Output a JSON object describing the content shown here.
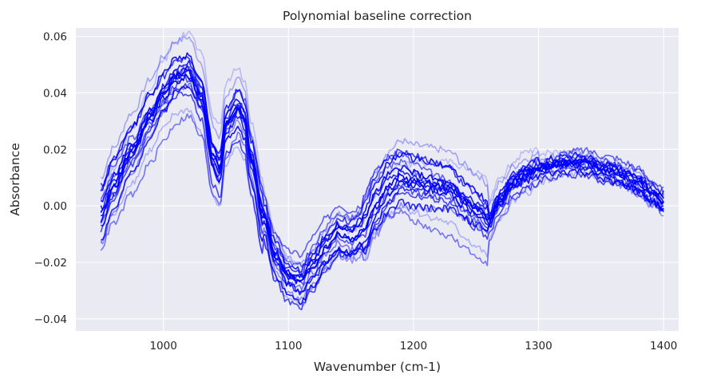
{
  "chart_data": {
    "type": "line",
    "title": "Polynomial baseline correction",
    "xlabel": "Wavenumber (cm-1)",
    "ylabel": "Absorbance",
    "xlim": [
      930,
      1412
    ],
    "ylim": [
      -0.0443,
      0.063
    ],
    "xticks": [
      1000,
      1100,
      1200,
      1300,
      1400
    ],
    "xtick_labels": [
      "1000",
      "1100",
      "1200",
      "1300",
      "1400"
    ],
    "yticks": [
      -0.04,
      -0.02,
      0.0,
      0.02,
      0.04,
      0.06
    ],
    "ytick_labels": [
      "−0.04",
      "−0.02",
      "0.00",
      "0.02",
      "0.04",
      "0.06"
    ],
    "grid": true,
    "line_color": "#0000ff",
    "background_color": "#eaeaf2",
    "grid_color": "#ffffff",
    "series_template": {
      "x": [
        950,
        960,
        975,
        990,
        1000,
        1010,
        1020,
        1030,
        1040,
        1045,
        1050,
        1060,
        1065,
        1070,
        1080,
        1090,
        1100,
        1110,
        1120,
        1130,
        1140,
        1150,
        1160,
        1170,
        1180,
        1190,
        1200,
        1210,
        1220,
        1230,
        1240,
        1250,
        1260,
        1270,
        1280,
        1290,
        1300,
        1310,
        1320,
        1330,
        1340,
        1350,
        1360,
        1370,
        1380,
        1390,
        1400
      ],
      "y": [
        -0.004,
        0.006,
        0.018,
        0.03,
        0.038,
        0.044,
        0.046,
        0.038,
        0.016,
        0.012,
        0.028,
        0.034,
        0.03,
        0.016,
        -0.004,
        -0.018,
        -0.025,
        -0.027,
        -0.021,
        -0.015,
        -0.01,
        -0.012,
        -0.009,
        0.0,
        0.006,
        0.009,
        0.007,
        0.006,
        0.005,
        0.004,
        0.0,
        -0.003,
        -0.006,
        0.002,
        0.008,
        0.011,
        0.013,
        0.014,
        0.015,
        0.0155,
        0.015,
        0.013,
        0.012,
        0.01,
        0.008,
        0.004,
        0.001
      ]
    },
    "series": [
      {
        "shift": 0.0,
        "wave": 0.0,
        "opacity": 0.95
      },
      {
        "shift": 0.006,
        "wave": 0.004,
        "opacity": 0.9
      },
      {
        "shift": -0.005,
        "wave": -0.003,
        "opacity": 0.85
      },
      {
        "shift": 0.009,
        "wave": 0.006,
        "opacity": 0.6
      },
      {
        "shift": -0.008,
        "wave": -0.005,
        "opacity": 0.7
      },
      {
        "shift": 0.003,
        "wave": -0.002,
        "opacity": 0.95
      },
      {
        "shift": -0.002,
        "wave": 0.005,
        "opacity": 0.8
      },
      {
        "shift": 0.012,
        "wave": 0.003,
        "opacity": 0.3
      },
      {
        "shift": -0.011,
        "wave": 0.002,
        "opacity": 0.25
      },
      {
        "shift": 0.004,
        "wave": 0.007,
        "opacity": 0.55
      },
      {
        "shift": -0.004,
        "wave": -0.006,
        "opacity": 0.9
      },
      {
        "shift": 0.007,
        "wave": -0.004,
        "opacity": 0.75
      },
      {
        "shift": -0.007,
        "wave": 0.004,
        "opacity": 0.4
      },
      {
        "shift": 0.001,
        "wave": 0.001,
        "opacity": 1.0
      },
      {
        "shift": -0.001,
        "wave": -0.001,
        "opacity": 0.65
      },
      {
        "shift": 0.01,
        "wave": -0.006,
        "opacity": 0.2
      },
      {
        "shift": -0.009,
        "wave": 0.006,
        "opacity": 0.5
      },
      {
        "shift": 0.005,
        "wave": 0.002,
        "opacity": 0.85
      }
    ]
  }
}
